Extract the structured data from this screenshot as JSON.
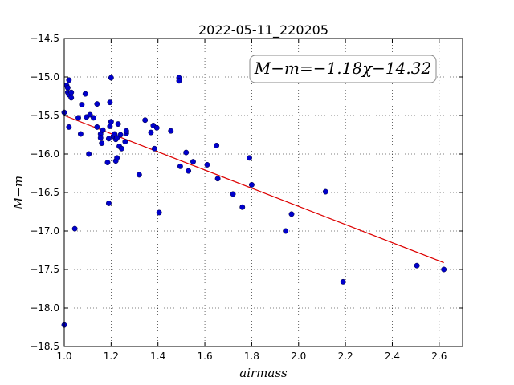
{
  "chart_data": {
    "type": "scatter",
    "title": "2022-05-11_220205",
    "xlabel": "airmass",
    "ylabel": "M−m",
    "xlim": [
      1.0,
      2.7
    ],
    "ylim": [
      -18.5,
      -14.5
    ],
    "x_ticks": [
      1.0,
      1.2,
      1.4,
      1.6,
      1.8,
      2.0,
      2.2,
      2.4,
      2.6
    ],
    "x_tick_labels": [
      "1.0",
      "1.2",
      "1.4",
      "1.6",
      "1.8",
      "2.0",
      "2.2",
      "2.4",
      "2.6"
    ],
    "y_ticks": [
      -14.5,
      -15.0,
      -15.5,
      -16.0,
      -16.5,
      -17.0,
      -17.5,
      -18.0,
      -18.5
    ],
    "y_tick_labels": [
      "−14.5",
      "−15.0",
      "−15.5",
      "−16.0",
      "−16.5",
      "−17.0",
      "−17.5",
      "−18.0",
      "−18.5"
    ],
    "grid": true,
    "annotation": "M−m=−1.18χ−14.32",
    "point_color": "#0000cc",
    "fit_color": "#dd0000",
    "fit": {
      "slope": -1.18,
      "intercept": -14.32,
      "x_range": [
        1.0,
        2.62
      ]
    },
    "points": [
      [
        1.0,
        -15.46
      ],
      [
        1.0,
        -18.22
      ],
      [
        1.01,
        -15.11
      ],
      [
        1.015,
        -15.14
      ],
      [
        1.015,
        -15.2
      ],
      [
        1.02,
        -15.04
      ],
      [
        1.02,
        -15.23
      ],
      [
        1.02,
        -15.65
      ],
      [
        1.03,
        -15.2
      ],
      [
        1.03,
        -15.27
      ],
      [
        1.045,
        -16.97
      ],
      [
        1.06,
        -15.53
      ],
      [
        1.07,
        -15.74
      ],
      [
        1.075,
        -15.36
      ],
      [
        1.09,
        -15.22
      ],
      [
        1.095,
        -15.52
      ],
      [
        1.105,
        -16.0
      ],
      [
        1.11,
        -15.49
      ],
      [
        1.125,
        -15.53
      ],
      [
        1.14,
        -15.35
      ],
      [
        1.14,
        -15.65
      ],
      [
        1.155,
        -15.74
      ],
      [
        1.155,
        -15.79
      ],
      [
        1.16,
        -15.86
      ],
      [
        1.165,
        -15.69
      ],
      [
        1.185,
        -16.11
      ],
      [
        1.19,
        -16.64
      ],
      [
        1.19,
        -15.8
      ],
      [
        1.195,
        -15.64
      ],
      [
        1.195,
        -15.33
      ],
      [
        1.2,
        -15.01
      ],
      [
        1.2,
        -15.58
      ],
      [
        1.21,
        -15.77
      ],
      [
        1.215,
        -15.74
      ],
      [
        1.22,
        -15.81
      ],
      [
        1.22,
        -16.09
      ],
      [
        1.225,
        -16.05
      ],
      [
        1.225,
        -15.79
      ],
      [
        1.23,
        -15.61
      ],
      [
        1.235,
        -15.9
      ],
      [
        1.24,
        -15.75
      ],
      [
        1.245,
        -15.93
      ],
      [
        1.26,
        -15.84
      ],
      [
        1.265,
        -15.73
      ],
      [
        1.265,
        -15.7
      ],
      [
        1.32,
        -16.27
      ],
      [
        1.345,
        -15.56
      ],
      [
        1.37,
        -15.72
      ],
      [
        1.38,
        -15.63
      ],
      [
        1.385,
        -15.93
      ],
      [
        1.395,
        -15.66
      ],
      [
        1.405,
        -16.76
      ],
      [
        1.455,
        -15.7
      ],
      [
        1.49,
        -15.01
      ],
      [
        1.49,
        -15.05
      ],
      [
        1.495,
        -16.16
      ],
      [
        1.52,
        -15.98
      ],
      [
        1.53,
        -16.22
      ],
      [
        1.55,
        -16.1
      ],
      [
        1.61,
        -16.14
      ],
      [
        1.65,
        -15.89
      ],
      [
        1.655,
        -16.32
      ],
      [
        1.72,
        -16.52
      ],
      [
        1.76,
        -16.69
      ],
      [
        1.79,
        -16.05
      ],
      [
        1.8,
        -16.4
      ],
      [
        1.945,
        -17.0
      ],
      [
        1.97,
        -16.78
      ],
      [
        2.115,
        -16.49
      ],
      [
        2.19,
        -17.66
      ],
      [
        2.505,
        -17.45
      ],
      [
        2.62,
        -17.5
      ]
    ]
  }
}
